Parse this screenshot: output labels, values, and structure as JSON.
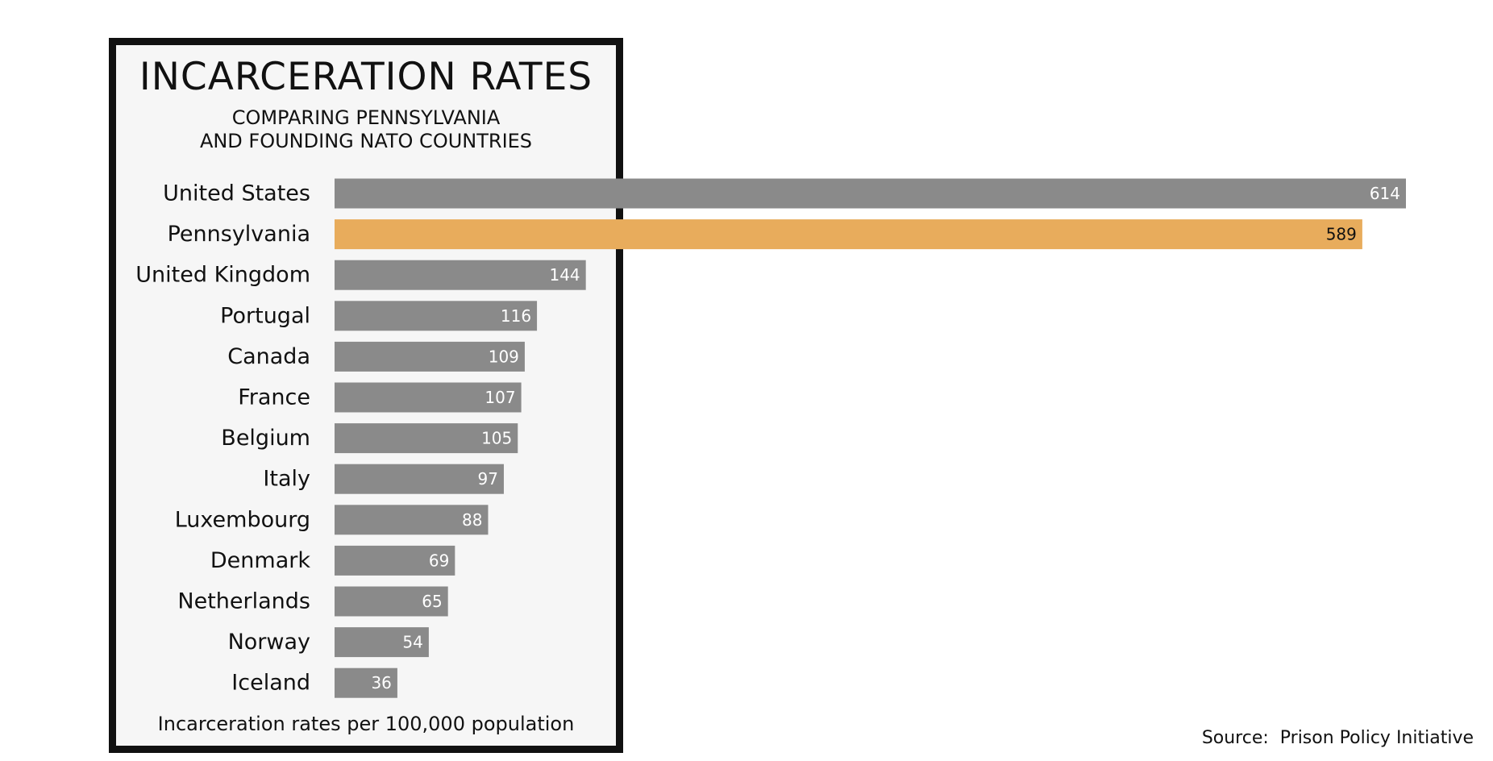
{
  "colors": {
    "bar_default": "#8a8a8a",
    "bar_highlight": "#e8ac5c",
    "label_on_default": "#ffffff",
    "label_on_highlight": "#111111"
  },
  "chart_data": {
    "type": "bar",
    "orientation": "horizontal",
    "title": "INCARCERATION RATES",
    "subtitle_lines": [
      "COMPARING PENNSYLVANIA",
      "AND FOUNDING NATO COUNTRIES"
    ],
    "footnote": "Incarceration rates per 100,000 population",
    "categories": [
      "United States",
      "Pennsylvania",
      "United Kingdom",
      "Portugal",
      "Canada",
      "France",
      "Belgium",
      "Italy",
      "Luxembourg",
      "Denmark",
      "Netherlands",
      "Norway",
      "Iceland"
    ],
    "values": [
      614,
      589,
      144,
      116,
      109,
      107,
      105,
      97,
      88,
      69,
      65,
      54,
      36
    ],
    "highlight": "Pennsylvania",
    "data_labels": true,
    "grid": false,
    "legend": false,
    "xlim": [
      0,
      614
    ]
  },
  "source": "Source:  Prison Policy Initiative"
}
